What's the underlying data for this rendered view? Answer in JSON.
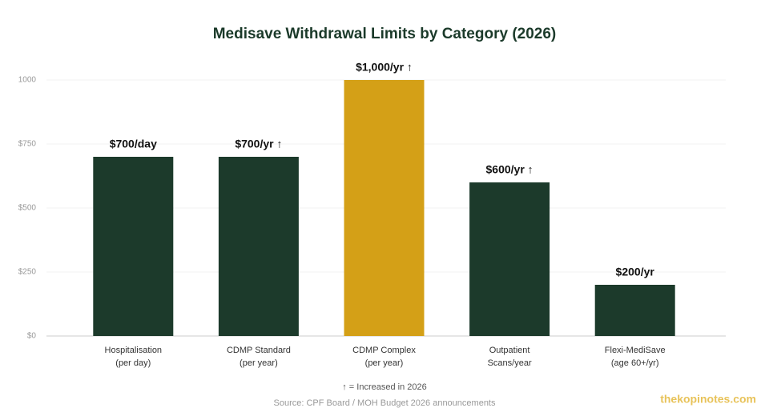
{
  "chart_data": {
    "type": "bar",
    "title": "Medisave Withdrawal Limits by Category (2026)",
    "categories": [
      [
        "Hospitalisation",
        "(per day)"
      ],
      [
        "CDMP Standard",
        "(per year)"
      ],
      [
        "CDMP Complex",
        "(per year)"
      ],
      [
        "Outpatient",
        "Scans/year"
      ],
      [
        "Flexi-MediSave",
        "(age 60+/yr)"
      ]
    ],
    "values": [
      700,
      700,
      1000,
      600,
      200
    ],
    "value_labels": [
      "$700/day",
      "$700/yr ↑",
      "$1,000/yr ↑",
      "$600/yr ↑",
      "$200/yr"
    ],
    "colors": [
      "#1c3a2b",
      "#1c3a2b",
      "#d4a017",
      "#1c3a2b",
      "#1c3a2b"
    ],
    "ylim": [
      0,
      1000
    ],
    "yticks": [
      {
        "value": 0,
        "label": "$0"
      },
      {
        "value": 250,
        "label": "$250"
      },
      {
        "value": 500,
        "label": "$500"
      },
      {
        "value": 750,
        "label": "$750"
      },
      1000
    ],
    "grid": true,
    "footnote": "↑ = Increased in 2026",
    "source": "Source: CPF Board / MOH Budget 2026 announcements",
    "watermark": "thekopinotes.com"
  }
}
